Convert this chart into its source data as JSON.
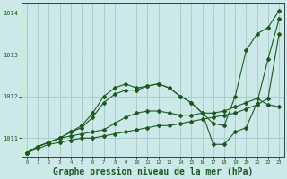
{
  "bg_color": "#cce8e8",
  "grid_color": "#aacccc",
  "line_color": "#1a5c1a",
  "marker_color": "#1a5c1a",
  "xlabel": "Graphe pression niveau de la mer (hPa)",
  "xlabel_fontsize": 7.0,
  "xlim": [
    -0.5,
    23.5
  ],
  "ylim": [
    1010.55,
    1014.25
  ],
  "yticks": [
    1011,
    1012,
    1013,
    1014
  ],
  "xticks": [
    0,
    1,
    2,
    3,
    4,
    5,
    6,
    7,
    8,
    9,
    10,
    11,
    12,
    13,
    14,
    15,
    16,
    17,
    18,
    19,
    20,
    21,
    22,
    23
  ],
  "series": [
    [
      1010.65,
      1010.75,
      1010.85,
      1010.9,
      1010.95,
      1011.0,
      1011.0,
      1011.05,
      1011.1,
      1011.15,
      1011.2,
      1011.25,
      1011.3,
      1011.3,
      1011.35,
      1011.4,
      1011.45,
      1011.5,
      1011.55,
      1011.6,
      1011.7,
      1011.8,
      1011.95,
      1013.5
    ],
    [
      1010.65,
      1010.8,
      1010.9,
      1011.0,
      1011.05,
      1011.1,
      1011.15,
      1011.2,
      1011.35,
      1011.5,
      1011.6,
      1011.65,
      1011.65,
      1011.6,
      1011.55,
      1011.55,
      1011.6,
      1011.6,
      1011.65,
      1011.75,
      1011.85,
      1011.95,
      1011.8,
      1011.75
    ],
    [
      1010.65,
      1010.8,
      1010.9,
      1011.0,
      1011.15,
      1011.25,
      1011.5,
      1011.85,
      1012.05,
      1012.15,
      1012.15,
      1012.25,
      1012.3,
      1012.2,
      1012.0,
      1011.85,
      1011.6,
      1010.85,
      1010.85,
      1011.15,
      1011.25,
      1011.85,
      1012.9,
      1013.85
    ],
    [
      1010.65,
      1010.8,
      1010.9,
      1011.0,
      1011.15,
      1011.3,
      1011.6,
      1012.0,
      1012.2,
      1012.3,
      1012.2,
      1012.25,
      1012.3,
      1012.2,
      1012.0,
      1011.85,
      1011.6,
      1011.35,
      1011.3,
      1012.0,
      1013.1,
      1013.5,
      1013.65,
      1014.05
    ]
  ]
}
